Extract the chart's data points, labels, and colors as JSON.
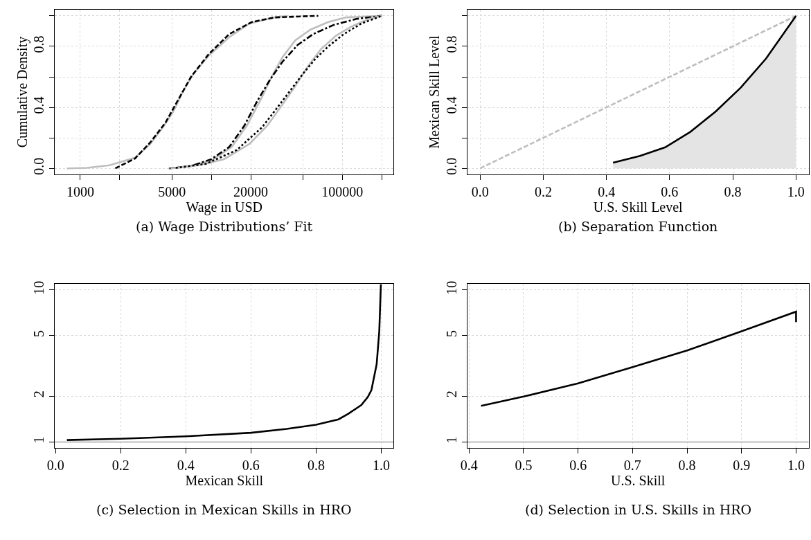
{
  "chart_data": [
    {
      "type": "line",
      "title": "(a) Wage Distributions’ Fit",
      "xlabel": "Wage in USD",
      "ylabel": "Cumulative Density",
      "log": "x",
      "grid": true,
      "xlim": [
        640,
        246000
      ],
      "ylim": [
        -0.04,
        1.04
      ],
      "xticks": [
        1000,
        {
          "value": 2000,
          "label": null
        },
        5000,
        {
          "value": 10000,
          "label": null
        },
        20000,
        {
          "value": 50000,
          "label": null
        },
        100000,
        {
          "value": 200000,
          "label": null
        }
      ],
      "yticks": [
        {
          "value": 0,
          "label": "0.0"
        },
        {
          "value": 0.2,
          "label": null
        },
        {
          "value": 0.4,
          "label": "0.4"
        },
        {
          "value": 0.6,
          "label": null
        },
        {
          "value": 0.8,
          "label": "0.8"
        },
        {
          "value": 1.0,
          "label": null
        }
      ],
      "series": [
        {
          "color": "#bebebe",
          "line_style": "solid",
          "x": [
            790,
            1120,
            1670,
            2620,
            3420,
            4280,
            5110,
            6120,
            7310,
            9570,
            13690,
            19540,
            30560,
            38280
          ],
          "values": [
            0,
            0.003,
            0.02,
            0.07,
            0.16,
            0.27,
            0.37,
            0.51,
            0.62,
            0.74,
            0.86,
            0.95,
            0.99,
            1.0
          ]
        },
        {
          "color": "#000000",
          "line_style": "dashed",
          "x": [
            1850,
            2620,
            3420,
            4470,
            5850,
            7000,
            9570,
            13690,
            20460,
            30560,
            65460
          ],
          "values": [
            0,
            0.065,
            0.17,
            0.3,
            0.48,
            0.6,
            0.75,
            0.88,
            0.96,
            0.99,
            1.0
          ]
        },
        {
          "color": "#bebebe",
          "line_style": "solid",
          "x": [
            4720,
            6400,
            10000,
            14290,
            18690,
            24450,
            29220,
            34970,
            43750,
            57190,
            78170,
            106900,
            200000
          ],
          "values": [
            0,
            0.01,
            0.05,
            0.14,
            0.28,
            0.47,
            0.61,
            0.73,
            0.84,
            0.91,
            0.96,
            0.99,
            1.0
          ]
        },
        {
          "color": "#000000",
          "line_style": "dashdot",
          "x": [
            4790,
            7000,
            10000,
            13690,
            17870,
            22370,
            27980,
            34970,
            45710,
            59800,
            85500,
            128000,
            200000
          ],
          "values": [
            0,
            0.015,
            0.06,
            0.14,
            0.28,
            0.44,
            0.58,
            0.7,
            0.81,
            0.88,
            0.94,
            0.98,
            1.0
          ]
        },
        {
          "color": "#bebebe",
          "line_style": "solid",
          "x": [
            4890,
            8000,
            12500,
            19540,
            26730,
            34970,
            43750,
            54700,
            68400,
            89400,
            117000,
            160000,
            200000
          ],
          "values": [
            0,
            0.02,
            0.06,
            0.16,
            0.28,
            0.42,
            0.54,
            0.67,
            0.78,
            0.87,
            0.93,
            0.98,
            1.0
          ]
        },
        {
          "color": "#000000",
          "line_style": "dotted",
          "x": [
            5350,
            9140,
            15630,
            24450,
            32000,
            40000,
            50000,
            62500,
            78170,
            102300,
            140000,
            200000
          ],
          "values": [
            0.003,
            0.03,
            0.12,
            0.27,
            0.4,
            0.51,
            0.62,
            0.72,
            0.8,
            0.88,
            0.95,
            1.0
          ]
        }
      ]
    },
    {
      "type": "line",
      "title": "(b) Separation Function",
      "xlabel": "U.S. Skill Level",
      "ylabel": "Mexican Skill Level",
      "grid": true,
      "xlim": [
        -0.04,
        1.04
      ],
      "ylim": [
        -0.04,
        1.04
      ],
      "xticks": [
        {
          "value": 0,
          "label": "0.0"
        },
        {
          "value": 0.2,
          "label": "0.2"
        },
        {
          "value": 0.4,
          "label": "0.4"
        },
        {
          "value": 0.6,
          "label": "0.6"
        },
        {
          "value": 0.8,
          "label": "0.8"
        },
        {
          "value": 1.0,
          "label": "1.0"
        }
      ],
      "yticks": [
        {
          "value": 0,
          "label": "0.0"
        },
        {
          "value": 0.2,
          "label": null
        },
        {
          "value": 0.4,
          "label": "0.4"
        },
        {
          "value": 0.6,
          "label": null
        },
        {
          "value": 0.8,
          "label": "0.8"
        },
        {
          "value": 1.0,
          "label": null
        }
      ],
      "series": [
        {
          "color": "#bebebe",
          "line_style": "dashed",
          "x": [
            0,
            1
          ],
          "values": [
            0,
            1
          ]
        },
        {
          "type": "area",
          "color": "#000000",
          "line_style": "solid",
          "x": [
            0.421,
            0.506,
            0.586,
            0.666,
            0.746,
            0.825,
            0.905,
            1.0
          ],
          "values": [
            0.037,
            0.081,
            0.138,
            0.24,
            0.373,
            0.529,
            0.719,
            1.0
          ]
        }
      ]
    },
    {
      "type": "line",
      "title": "(c) Selection in Mexican Skills in HRO",
      "xlabel": "Mexican Skill",
      "log": "y",
      "grid": true,
      "xlim": [
        -0.002,
        1.038
      ],
      "ylim": [
        0.912,
        10.96
      ],
      "xticks": [
        {
          "value": 0,
          "label": "0.0"
        },
        {
          "value": 0.2,
          "label": "0.2"
        },
        {
          "value": 0.4,
          "label": "0.4"
        },
        {
          "value": 0.6,
          "label": "0.6"
        },
        {
          "value": 0.8,
          "label": "0.8"
        },
        {
          "value": 1.0,
          "label": "1.0"
        }
      ],
      "yticks": [
        1,
        2,
        5,
        10
      ],
      "ref_lines": [
        {
          "axis": "y",
          "value": 1,
          "color": "#bebebe"
        }
      ],
      "series": [
        {
          "color": "#000000",
          "line_style": "solid",
          "x": [
            0.035,
            0.2,
            0.4,
            0.6,
            0.71,
            0.8,
            0.869,
            0.9,
            0.939,
            0.959,
            0.97,
            0.986,
            0.994,
            0.999
          ],
          "values": [
            1.03,
            1.05,
            1.09,
            1.15,
            1.22,
            1.3,
            1.41,
            1.54,
            1.75,
            1.98,
            2.2,
            3.25,
            5.35,
            10.9
          ]
        }
      ]
    },
    {
      "type": "line",
      "title": "(d) Selection in U.S. Skills in HRO",
      "xlabel": "U.S. Skill",
      "log": "y",
      "grid": true,
      "xlim": [
        0.397,
        1.023
      ],
      "ylim": [
        0.912,
        10.96
      ],
      "xticks": [
        0.4,
        0.5,
        0.6,
        0.7,
        0.8,
        0.9,
        {
          "value": 1.0,
          "label": "1.0"
        }
      ],
      "yticks": [
        1,
        2,
        5,
        10
      ],
      "ref_lines": [
        {
          "axis": "y",
          "value": 1,
          "color": "#bebebe"
        }
      ],
      "series": [
        {
          "color": "#000000",
          "line_style": "solid",
          "x": [
            0.422,
            0.5,
            0.6,
            0.7,
            0.8,
            0.9,
            1.0,
            1.0
          ],
          "values": [
            1.73,
            1.99,
            2.43,
            3.11,
            4.0,
            5.35,
            7.2,
            6.15
          ]
        }
      ]
    }
  ]
}
